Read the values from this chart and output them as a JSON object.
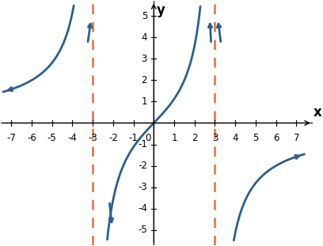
{
  "title": "",
  "xlabel": "x",
  "ylabel": "y",
  "xlim": [
    -7.5,
    7.8
  ],
  "ylim": [
    -5.7,
    5.7
  ],
  "xticks": [
    -7,
    -6,
    -5,
    -4,
    -3,
    -2,
    -1,
    0,
    1,
    2,
    3,
    4,
    5,
    6,
    7
  ],
  "yticks": [
    -5,
    -4,
    -3,
    -2,
    -1,
    1,
    2,
    3,
    4,
    5
  ],
  "asymptotes": [
    -3,
    3
  ],
  "asymptote_color": "#E07040",
  "curve_color": "#2B5F8E",
  "curve_linewidth": 2.0,
  "background_color": "#ffffff",
  "tick_fontsize": 8.5,
  "label_fontsize": 12,
  "axis_color": "#888888"
}
